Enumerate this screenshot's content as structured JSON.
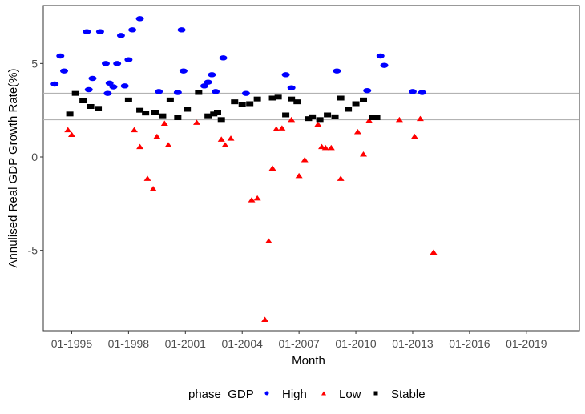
{
  "chart_data": {
    "type": "scatter",
    "xlabel": "Month",
    "ylabel": "Annulised Real GDP Growth Rate(%)",
    "x_tick_labels": [
      "01-1995",
      "01-1998",
      "01-2001",
      "01-2004",
      "01-2007",
      "01-2010",
      "01-2013",
      "01-2016",
      "01-2019"
    ],
    "x_tick_values": [
      1995,
      1998,
      2001,
      2004,
      2007,
      2010,
      2013,
      2016,
      2019
    ],
    "y_tick_labels": [
      "5",
      "0",
      "-5"
    ],
    "y_tick_values": [
      5,
      0,
      -5
    ],
    "xlim": [
      1993.5,
      2021.8
    ],
    "ylim": [
      -9.3,
      8.1
    ],
    "hlines": [
      3.4,
      2.0
    ],
    "legend": {
      "title": "phase_GDP",
      "position": "bottom",
      "entries": [
        {
          "label": "High",
          "color": "#0000ff",
          "shape": "circle"
        },
        {
          "label": "Low",
          "color": "#ff0000",
          "shape": "triangle"
        },
        {
          "label": "Stable",
          "color": "#000000",
          "shape": "square"
        }
      ]
    },
    "series": [
      {
        "name": "High",
        "color": "#0000ff",
        "points": [
          [
            1994.1,
            3.9
          ],
          [
            1994.4,
            5.4
          ],
          [
            1994.6,
            4.6
          ],
          [
            1995.8,
            6.7
          ],
          [
            1995.9,
            3.6
          ],
          [
            1996.1,
            4.2
          ],
          [
            1996.5,
            6.7
          ],
          [
            1996.8,
            5.0
          ],
          [
            1996.9,
            3.4
          ],
          [
            1997.0,
            3.95
          ],
          [
            1997.2,
            3.75
          ],
          [
            1997.4,
            5.0
          ],
          [
            1997.6,
            6.5
          ],
          [
            1997.8,
            3.8
          ],
          [
            1998.0,
            5.2
          ],
          [
            1998.2,
            6.8
          ],
          [
            1998.6,
            7.4
          ],
          [
            1999.6,
            3.5
          ],
          [
            2000.6,
            3.45
          ],
          [
            2000.8,
            6.8
          ],
          [
            2000.9,
            4.6
          ],
          [
            2002.0,
            3.8
          ],
          [
            2002.2,
            4.0
          ],
          [
            2002.4,
            4.4
          ],
          [
            2002.6,
            3.5
          ],
          [
            2003.0,
            5.3
          ],
          [
            2004.2,
            3.4
          ],
          [
            2006.3,
            4.4
          ],
          [
            2006.6,
            3.7
          ],
          [
            2009.0,
            4.6
          ],
          [
            2010.6,
            3.55
          ],
          [
            2011.3,
            5.4
          ],
          [
            2011.5,
            4.9
          ],
          [
            2013.0,
            3.5
          ],
          [
            2013.5,
            3.45
          ]
        ]
      },
      {
        "name": "Low",
        "color": "#ff0000",
        "points": [
          [
            1994.8,
            1.45
          ],
          [
            1995.0,
            1.2
          ],
          [
            1998.3,
            1.45
          ],
          [
            1998.6,
            0.55
          ],
          [
            1999.0,
            -1.15
          ],
          [
            1999.3,
            -1.7
          ],
          [
            1999.5,
            1.1
          ],
          [
            1999.9,
            1.8
          ],
          [
            2000.1,
            0.65
          ],
          [
            2001.6,
            1.85
          ],
          [
            2002.9,
            0.95
          ],
          [
            2003.1,
            0.65
          ],
          [
            2003.4,
            1.0
          ],
          [
            2004.5,
            -2.3
          ],
          [
            2004.8,
            -2.2
          ],
          [
            2005.2,
            -8.7
          ],
          [
            2005.4,
            -4.5
          ],
          [
            2005.6,
            -0.6
          ],
          [
            2005.8,
            1.5
          ],
          [
            2006.1,
            1.55
          ],
          [
            2006.6,
            2.0
          ],
          [
            2007.0,
            -1.0
          ],
          [
            2007.3,
            -0.15
          ],
          [
            2008.0,
            1.75
          ],
          [
            2008.2,
            0.55
          ],
          [
            2008.4,
            0.5
          ],
          [
            2008.7,
            0.5
          ],
          [
            2009.2,
            -1.15
          ],
          [
            2010.1,
            1.35
          ],
          [
            2010.4,
            0.15
          ],
          [
            2010.7,
            1.95
          ],
          [
            2012.3,
            2.0
          ],
          [
            2013.1,
            1.1
          ],
          [
            2013.4,
            2.05
          ],
          [
            2014.1,
            -5.1
          ]
        ]
      },
      {
        "name": "Stable",
        "color": "#000000",
        "points": [
          [
            1994.9,
            2.3
          ],
          [
            1995.2,
            3.4
          ],
          [
            1995.6,
            3.0
          ],
          [
            1996.0,
            2.7
          ],
          [
            1996.4,
            2.6
          ],
          [
            1998.0,
            3.05
          ],
          [
            1998.6,
            2.5
          ],
          [
            1998.9,
            2.35
          ],
          [
            1999.4,
            2.4
          ],
          [
            1999.8,
            2.2
          ],
          [
            2000.2,
            3.05
          ],
          [
            2000.6,
            2.1
          ],
          [
            2001.1,
            2.55
          ],
          [
            2001.7,
            3.45
          ],
          [
            2002.2,
            2.2
          ],
          [
            2002.5,
            2.3
          ],
          [
            2002.7,
            2.4
          ],
          [
            2002.9,
            2.0
          ],
          [
            2003.6,
            2.95
          ],
          [
            2004.0,
            2.8
          ],
          [
            2004.4,
            2.85
          ],
          [
            2004.8,
            3.1
          ],
          [
            2005.6,
            3.15
          ],
          [
            2005.9,
            3.2
          ],
          [
            2006.3,
            2.25
          ],
          [
            2006.6,
            3.1
          ],
          [
            2006.9,
            2.95
          ],
          [
            2007.5,
            2.05
          ],
          [
            2007.7,
            2.15
          ],
          [
            2008.1,
            2.0
          ],
          [
            2008.5,
            2.25
          ],
          [
            2008.9,
            2.15
          ],
          [
            2009.2,
            3.15
          ],
          [
            2009.6,
            2.55
          ],
          [
            2010.0,
            2.85
          ],
          [
            2010.4,
            3.05
          ],
          [
            2010.9,
            2.1
          ],
          [
            2011.1,
            2.1
          ]
        ]
      }
    ]
  }
}
